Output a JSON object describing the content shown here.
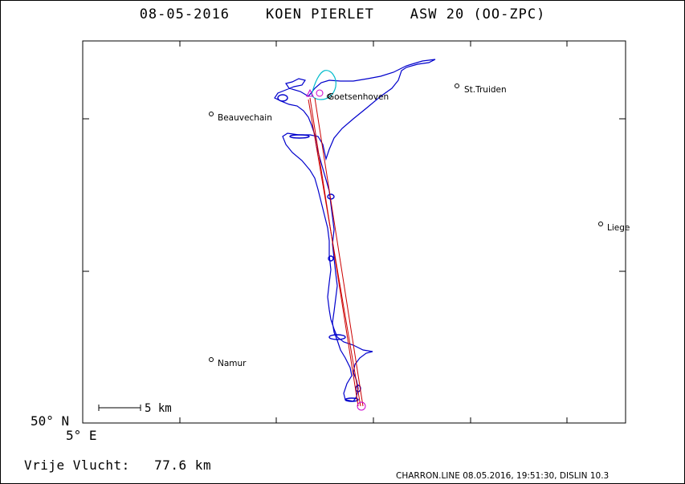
{
  "header": {
    "date": "08-05-2016",
    "pilot": "KOEN PIERLET",
    "glider": "ASW 20 (OO-ZPC)"
  },
  "map": {
    "lat_label": "50° N",
    "lon_label": "5° E",
    "scale_label": "5 km",
    "colors": {
      "track": "#0000cc",
      "task": "#cc0000",
      "start_loop": "#00bbcc",
      "turnpoint": "#cc00cc"
    },
    "towns": [
      {
        "name": "Goetsenhoven"
      },
      {
        "name": "St.Truiden"
      },
      {
        "name": "Beauvechain"
      },
      {
        "name": "Liege"
      },
      {
        "name": "Namur"
      }
    ]
  },
  "flight": {
    "label": "Vrije Vlucht:",
    "distance": "77.6 km"
  },
  "footer": {
    "text": "CHARRON.LINE 08.05.2016, 19:51:30, DISLIN 10.3"
  }
}
